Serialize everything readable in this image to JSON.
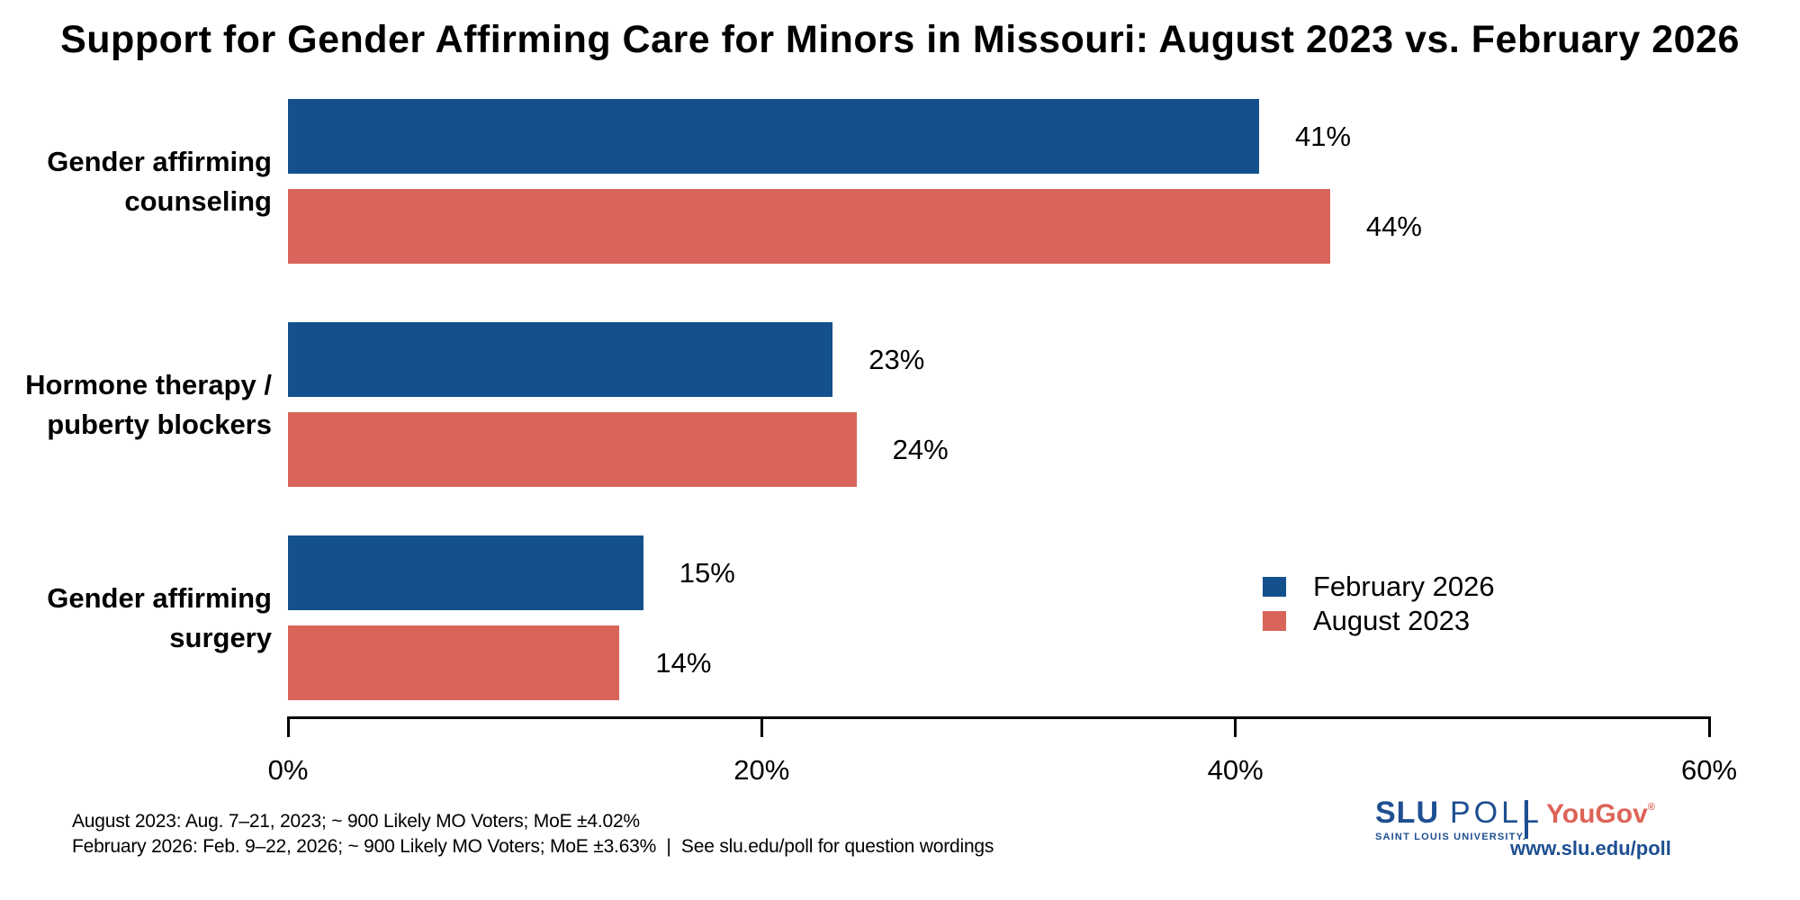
{
  "title": "Support for Gender Affirming Care for Minors in Missouri: August 2023 vs. February 2026",
  "chart_data": {
    "type": "bar",
    "orientation": "horizontal",
    "title": "Support for Gender Affirming Care for Minors in Missouri: August 2023 vs. February 2026",
    "categories": [
      "Gender affirming counseling",
      "Hormone therapy / puberty blockers",
      "Gender affirming surgery"
    ],
    "category_lines": [
      [
        "Gender affirming",
        "counseling"
      ],
      [
        "Hormone therapy /",
        "puberty blockers"
      ],
      [
        "Gender affirming",
        "surgery"
      ]
    ],
    "series": [
      {
        "name": "February 2026",
        "color": "#14508C",
        "values": [
          41,
          23,
          15
        ]
      },
      {
        "name": "August 2023",
        "color": "#D96459",
        "values": [
          44,
          24,
          14
        ]
      }
    ],
    "value_label_format": "percent",
    "xlabel": "",
    "ylabel": "",
    "xlim": [
      0,
      60
    ],
    "x_ticks": [
      "0%",
      "20%",
      "40%",
      "60%"
    ],
    "x_tick_values": [
      0,
      20,
      40,
      60
    ],
    "grid": false,
    "legend_position": "right-middle"
  },
  "legend": {
    "items": [
      {
        "label": "February 2026",
        "color": "#14508C"
      },
      {
        "label": "August 2023",
        "color": "#D96459"
      }
    ]
  },
  "footer": {
    "line1": "August 2023: Aug. 7–21, 2023; ~ 900 Likely MO Voters; MoE ±4.02%",
    "line2": "February 2026: Feb. 9–22, 2026; ~ 900 Likely MO Voters; MoE ±3.63%  |  See slu.edu/poll for question wordings"
  },
  "branding": {
    "slu": "SLU",
    "poll": "POLL",
    "university": "SAINT LOUIS UNIVERSITY.",
    "yougov": "YouGov",
    "yougov_mark": "®",
    "url": "www.slu.edu/poll",
    "blue": "#1D4F91",
    "red": "#DC6457"
  },
  "colors": {
    "february_2026": "#14508C",
    "august_2023": "#D96459",
    "axis": "#000000",
    "background": "#FFFFFF"
  }
}
